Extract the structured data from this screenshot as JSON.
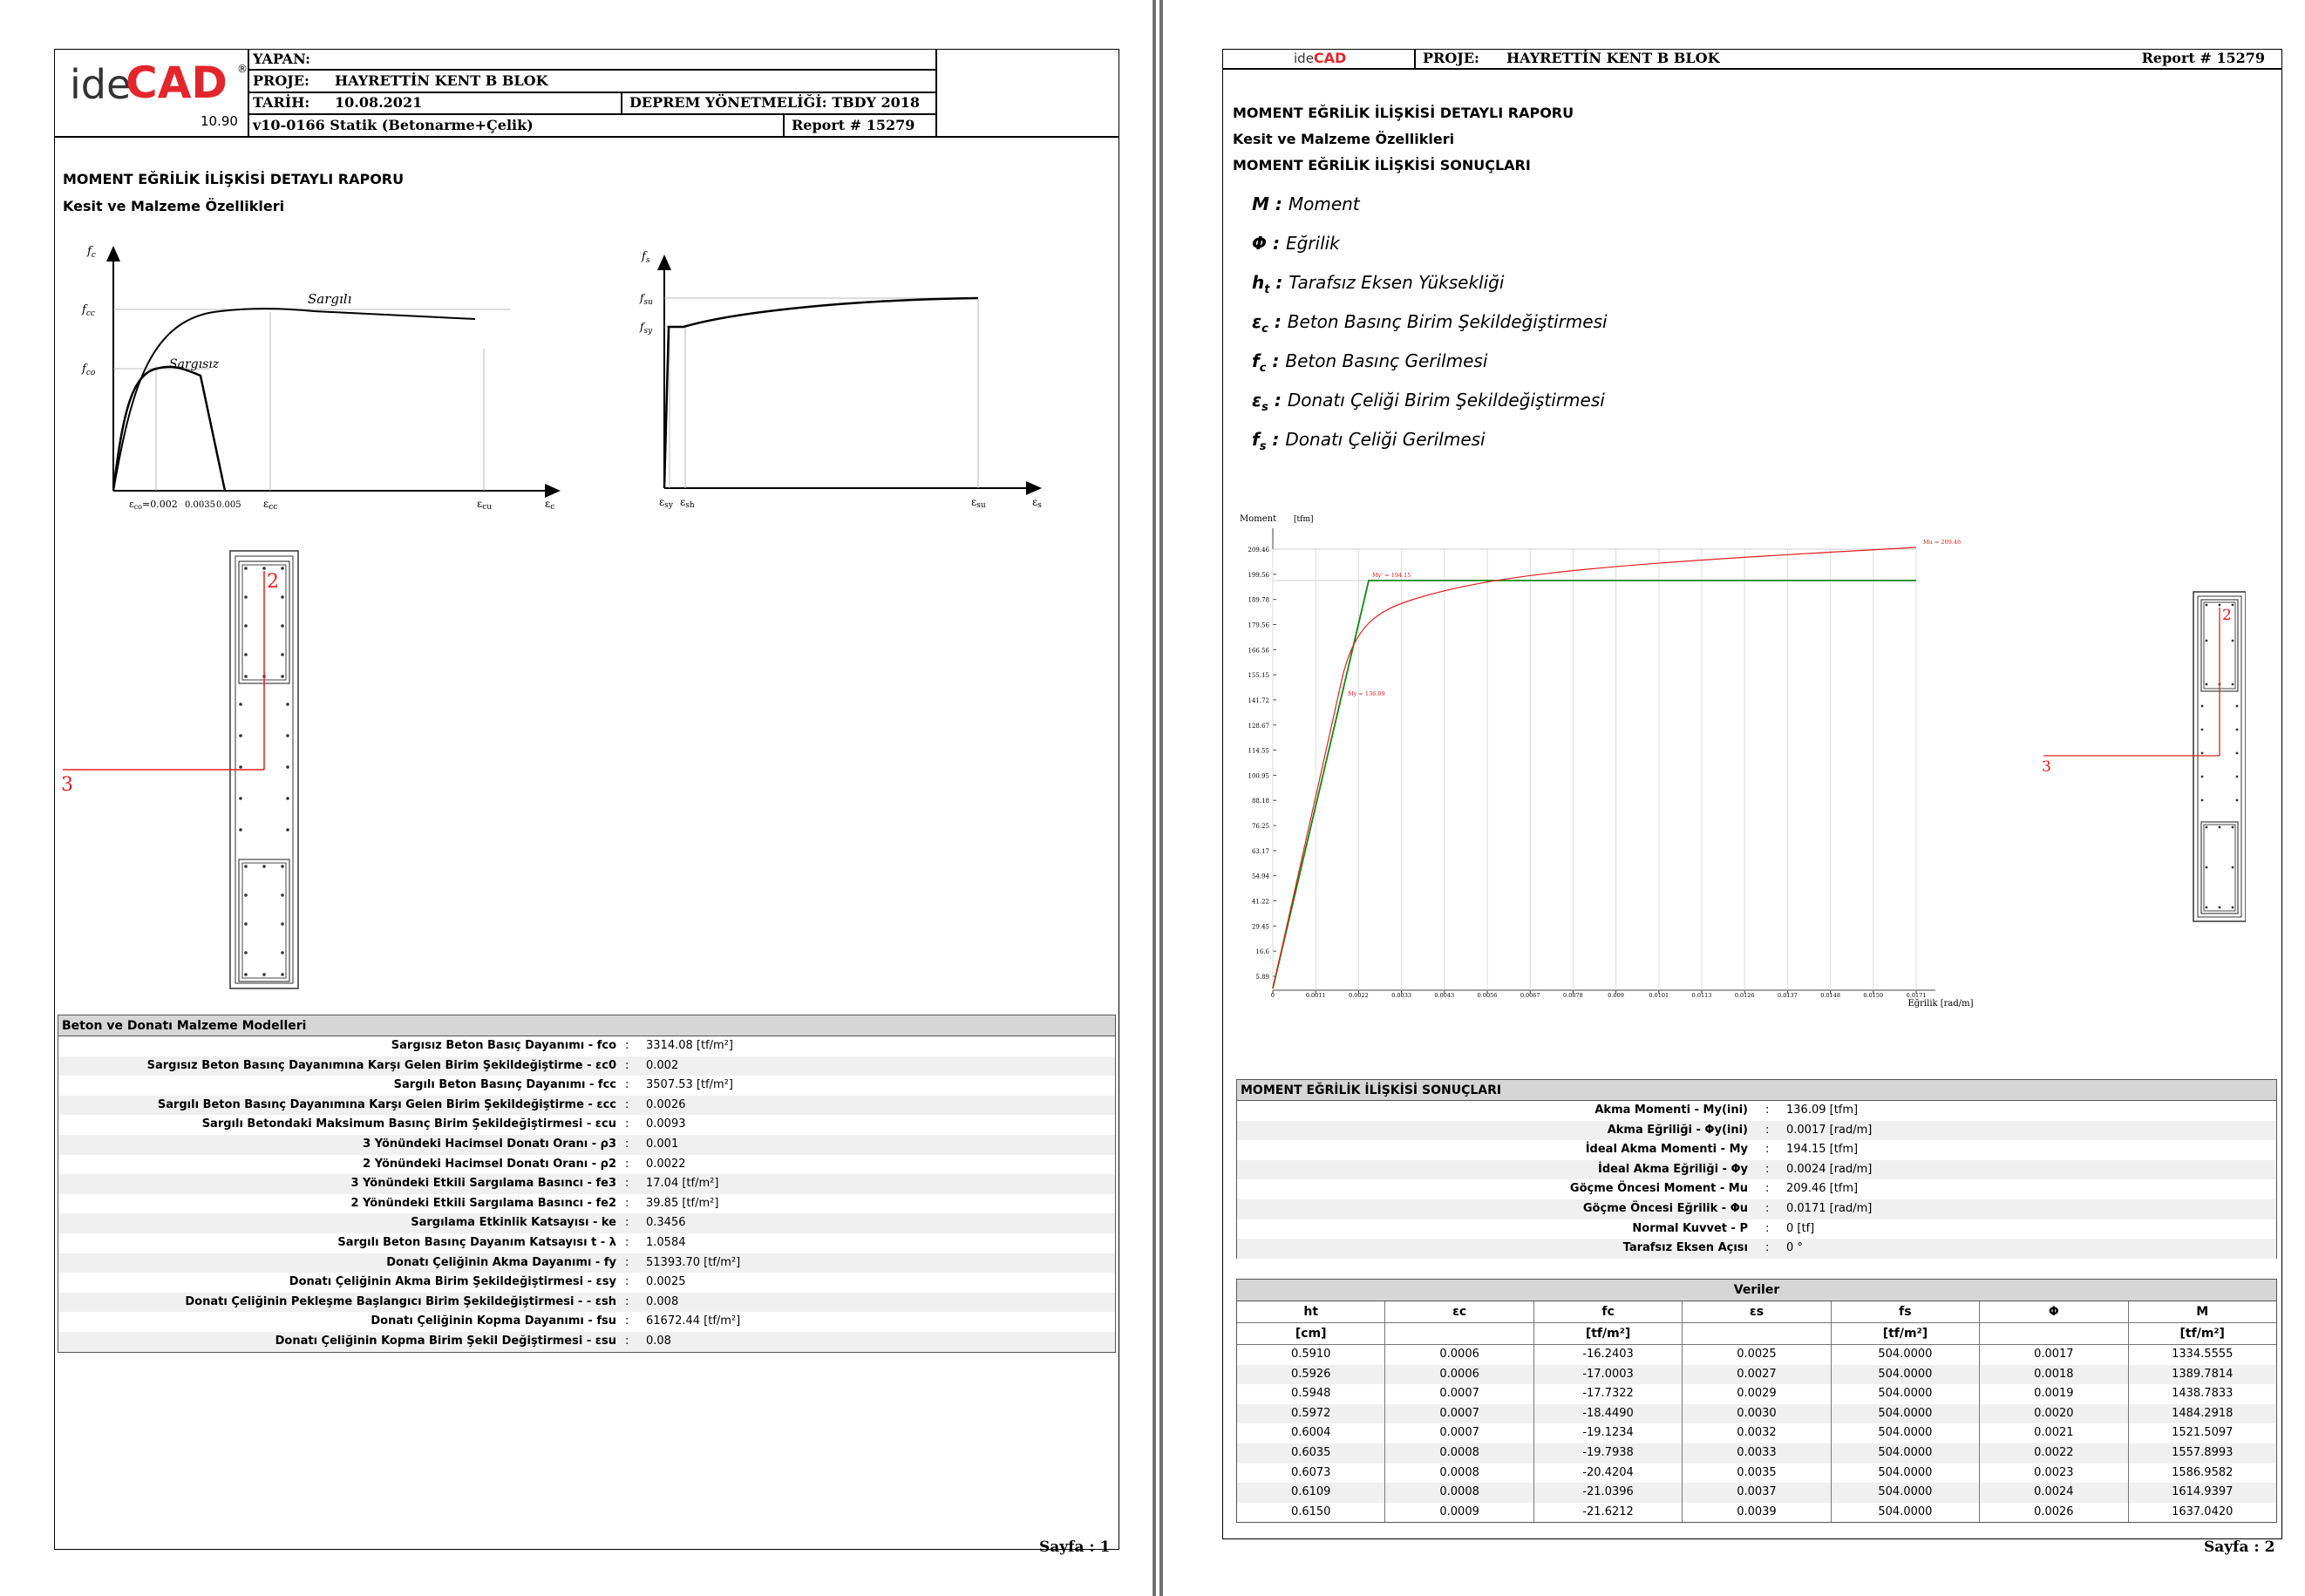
{
  "header": {
    "logo_text_ide": "ide",
    "logo_text_cad": "CAD",
    "logo_reg": "®",
    "logo_version": "10.90",
    "yapan_label": "YAPAN:",
    "proje_label": "PROJE:",
    "proje_value": "HAYRETTİN KENT B  BLOK",
    "tarih_label": "TARİH:",
    "tarih_value": "10.08.2021",
    "deprem": "DEPREM YÖNETMELİĞİ: TBDY 2018",
    "version": "v10-0166 Statik (Betonarme+Çelik)",
    "report": "Report # 15279"
  },
  "page1": {
    "title": "MOMENT EĞRİLİK İLİŞKİSİ DETAYLI RAPORU",
    "subtitle": "Kesit ve Malzeme Özellikleri",
    "concrete_chart": {
      "y_axis": "f",
      "y_axis_sub": "c",
      "fcc": "f",
      "fcc_sub": "cc",
      "fco": "f",
      "fco_sub": "co",
      "sargili": "Sargılı",
      "sargisiz": "Sargısız",
      "x_eco": "ε",
      "x_eco_sub": "co",
      "x_eco_val": "=0.002",
      "x_0035": "0.0035",
      "x_0005": "0.005",
      "x_ecc": "ε",
      "x_ecc_sub": "cc",
      "x_ecu": "ε",
      "x_ecu_sub": "cu",
      "x_axis": "ε",
      "x_axis_sub": "c"
    },
    "steel_chart": {
      "y_axis": "f",
      "y_axis_sub": "s",
      "fsu": "f",
      "fsu_sub": "su",
      "fsy": "f",
      "fsy_sub": "sy",
      "x_esy": "ε",
      "x_esy_sub": "sy",
      "x_esh": "ε",
      "x_esh_sub": "sh",
      "x_esu": "ε",
      "x_esu_sub": "su",
      "x_axis": "ε",
      "x_axis_sub": "s"
    },
    "section_label_2": "2",
    "section_label_3": "3",
    "materials_table": {
      "title": "Beton ve Donatı Malzeme Modelleri",
      "rows": [
        {
          "label": "Sargısız Beton Basıç Dayanımı  - fco",
          "value": "3314.08 [tf/m²]"
        },
        {
          "label": "Sargısız Beton Basınç Dayanımına Karşı Gelen Birim Şekildeğiştirme  - εc0",
          "value": "0.002"
        },
        {
          "label": "Sargılı Beton Basınç Dayanımı  - fcc",
          "value": "3507.53 [tf/m²]"
        },
        {
          "label": "Sargılı Beton Basınç Dayanımına Karşı Gelen Birim Şekildeğiştirme  - εcc",
          "value": "0.0026"
        },
        {
          "label": "Sargılı Betondaki Maksimum Basınç Birim Şekildeğiştirmesi  - εcu",
          "value": "0.0093"
        },
        {
          "label": "3 Yönündeki Hacimsel Donatı Oranı  - ρ3",
          "value": "0.001"
        },
        {
          "label": "2 Yönündeki Hacimsel Donatı Oranı  - ρ2",
          "value": "0.0022"
        },
        {
          "label": "3 Yönündeki Etkili Sargılama Basıncı  - fe3",
          "value": "17.04 [tf/m²]"
        },
        {
          "label": "2 Yönündeki Etkili Sargılama Basıncı  - fe2",
          "value": "39.85 [tf/m²]"
        },
        {
          "label": "Sargılama Etkinlik Katsayısı  - ke",
          "value": "0.3456"
        },
        {
          "label": "Sargılı Beton Basınç Dayanım Katsayısı t - λ",
          "value": "1.0584"
        },
        {
          "label": "Donatı Çeliğinin Akma Dayanımı  - fy",
          "value": "51393.70 [tf/m²]"
        },
        {
          "label": "Donatı Çeliğinin Akma Birim Şekildeğiştirmesi  - εsy",
          "value": "0.0025"
        },
        {
          "label": "Donatı Çeliğinin Pekleşme Başlangıcı Birim Şekildeğiştirmesi  - - εsh",
          "value": "0.008"
        },
        {
          "label": "Donatı Çeliğinin Kopma Dayanımı  - fsu",
          "value": "61672.44 [tf/m²]"
        },
        {
          "label": "Donatı Çeliğinin Kopma Birim Şekil Değiştirmesi  - εsu",
          "value": "0.08"
        }
      ]
    },
    "page_number": "Sayfa : 1"
  },
  "page2": {
    "title": "MOMENT EĞRİLİK İLİŞKİSİ DETAYLI RAPORU",
    "subtitle": "Kesit ve Malzeme Özellikleri",
    "results_title": "MOMENT EĞRİLİK İLİŞKİSİ SONUÇLARI",
    "legend": [
      {
        "sym": "M",
        "sub": "",
        "text": "Moment"
      },
      {
        "sym": "Φ",
        "sub": "",
        "text": "Eğrilik"
      },
      {
        "sym": "h",
        "sub": "t",
        "text": "Tarafsız Eksen Yüksekliği"
      },
      {
        "sym": "ε",
        "sub": "c",
        "text": "Beton Basınç Birim Şekildeğiştirmesi"
      },
      {
        "sym": "f",
        "sub": "c",
        "text": "Beton Basınç Gerilmesi"
      },
      {
        "sym": "ε",
        "sub": "s",
        "text": "Donatı Çeliği Birim Şekildeğiştirmesi"
      },
      {
        "sym": "f",
        "sub": "s",
        "text": "Donatı Çeliği Gerilmesi"
      }
    ],
    "section_label_2": "2",
    "section_label_3": "3",
    "results_table": {
      "title": "MOMENT EĞRİLİK İLİŞKİSİ SONUÇLARI",
      "rows": [
        {
          "label": "Akma Momenti - My(ini)",
          "value": "136.09 [tfm]"
        },
        {
          "label": "Akma Eğriliği - Φy(ini)",
          "value": "0.0017 [rad/m]"
        },
        {
          "label": "İdeal Akma Momenti - My",
          "value": "194.15 [tfm]"
        },
        {
          "label": "İdeal Akma Eğriliği - Φy",
          "value": "0.0024 [rad/m]"
        },
        {
          "label": "Göçme Öncesi Moment - Mu",
          "value": "209.46 [tfm]"
        },
        {
          "label": "Göçme Öncesi Eğrilik  - Φu",
          "value": "0.0171 [rad/m]"
        },
        {
          "label": "Normal Kuvvet - P",
          "value": "0 [tf]"
        },
        {
          "label": "Tarafsız Eksen Açısı",
          "value": "0 °"
        }
      ]
    },
    "veriler": {
      "title": "Veriler",
      "headers": [
        "ht",
        "εc",
        "fc",
        "εs",
        "fs",
        "Φ",
        "M"
      ],
      "units": [
        "[cm]",
        "",
        "[tf/m²]",
        "",
        "[tf/m²]",
        "",
        "[tf/m²]"
      ],
      "rows": [
        [
          "0.5910",
          "0.0006",
          "-16.2403",
          "0.0025",
          "504.0000",
          "0.0017",
          "1334.5555"
        ],
        [
          "0.5926",
          "0.0006",
          "-17.0003",
          "0.0027",
          "504.0000",
          "0.0018",
          "1389.7814"
        ],
        [
          "0.5948",
          "0.0007",
          "-17.7322",
          "0.0029",
          "504.0000",
          "0.0019",
          "1438.7833"
        ],
        [
          "0.5972",
          "0.0007",
          "-18.4490",
          "0.0030",
          "504.0000",
          "0.0020",
          "1484.2918"
        ],
        [
          "0.6004",
          "0.0007",
          "-19.1234",
          "0.0032",
          "504.0000",
          "0.0021",
          "1521.5097"
        ],
        [
          "0.6035",
          "0.0008",
          "-19.7938",
          "0.0033",
          "504.0000",
          "0.0022",
          "1557.8993"
        ],
        [
          "0.6073",
          "0.0008",
          "-20.4204",
          "0.0035",
          "504.0000",
          "0.0023",
          "1586.9582"
        ],
        [
          "0.6109",
          "0.0008",
          "-21.0396",
          "0.0037",
          "504.0000",
          "0.0024",
          "1614.9397"
        ],
        [
          "0.6150",
          "0.0009",
          "-21.6212",
          "0.0039",
          "504.0000",
          "0.0026",
          "1637.0420"
        ]
      ]
    },
    "moment_chart": {
      "y_label": "Moment",
      "y_unit": "[tfm]",
      "x_label": "Eğrilik [rad/m]",
      "y_ticks": [
        "5.89",
        "16.6",
        "29.45",
        "41.22",
        "54.94",
        "63.17",
        "76.25",
        "88.18",
        "100.95",
        "114.55",
        "128.67",
        "141.72",
        "155.15",
        "166.56",
        "179.56",
        "189.78",
        "199.56",
        "209.46"
      ],
      "x_ticks": [
        "0",
        "0.0011",
        "0.0022",
        "0.0033",
        "0.0043",
        "0.0056",
        "0.0067",
        "0.0078",
        "0.009",
        "0.0101",
        "0.0113",
        "0.0126",
        "0.0137",
        "0.0148",
        "0.0159",
        "0.0171"
      ],
      "label_my_ini": "My = 136.09",
      "label_my": "My' = 194.15",
      "label_mu": "Mu = 209.46"
    },
    "report_no": "Report # 15279",
    "page_number": "Sayfa : 2"
  }
}
